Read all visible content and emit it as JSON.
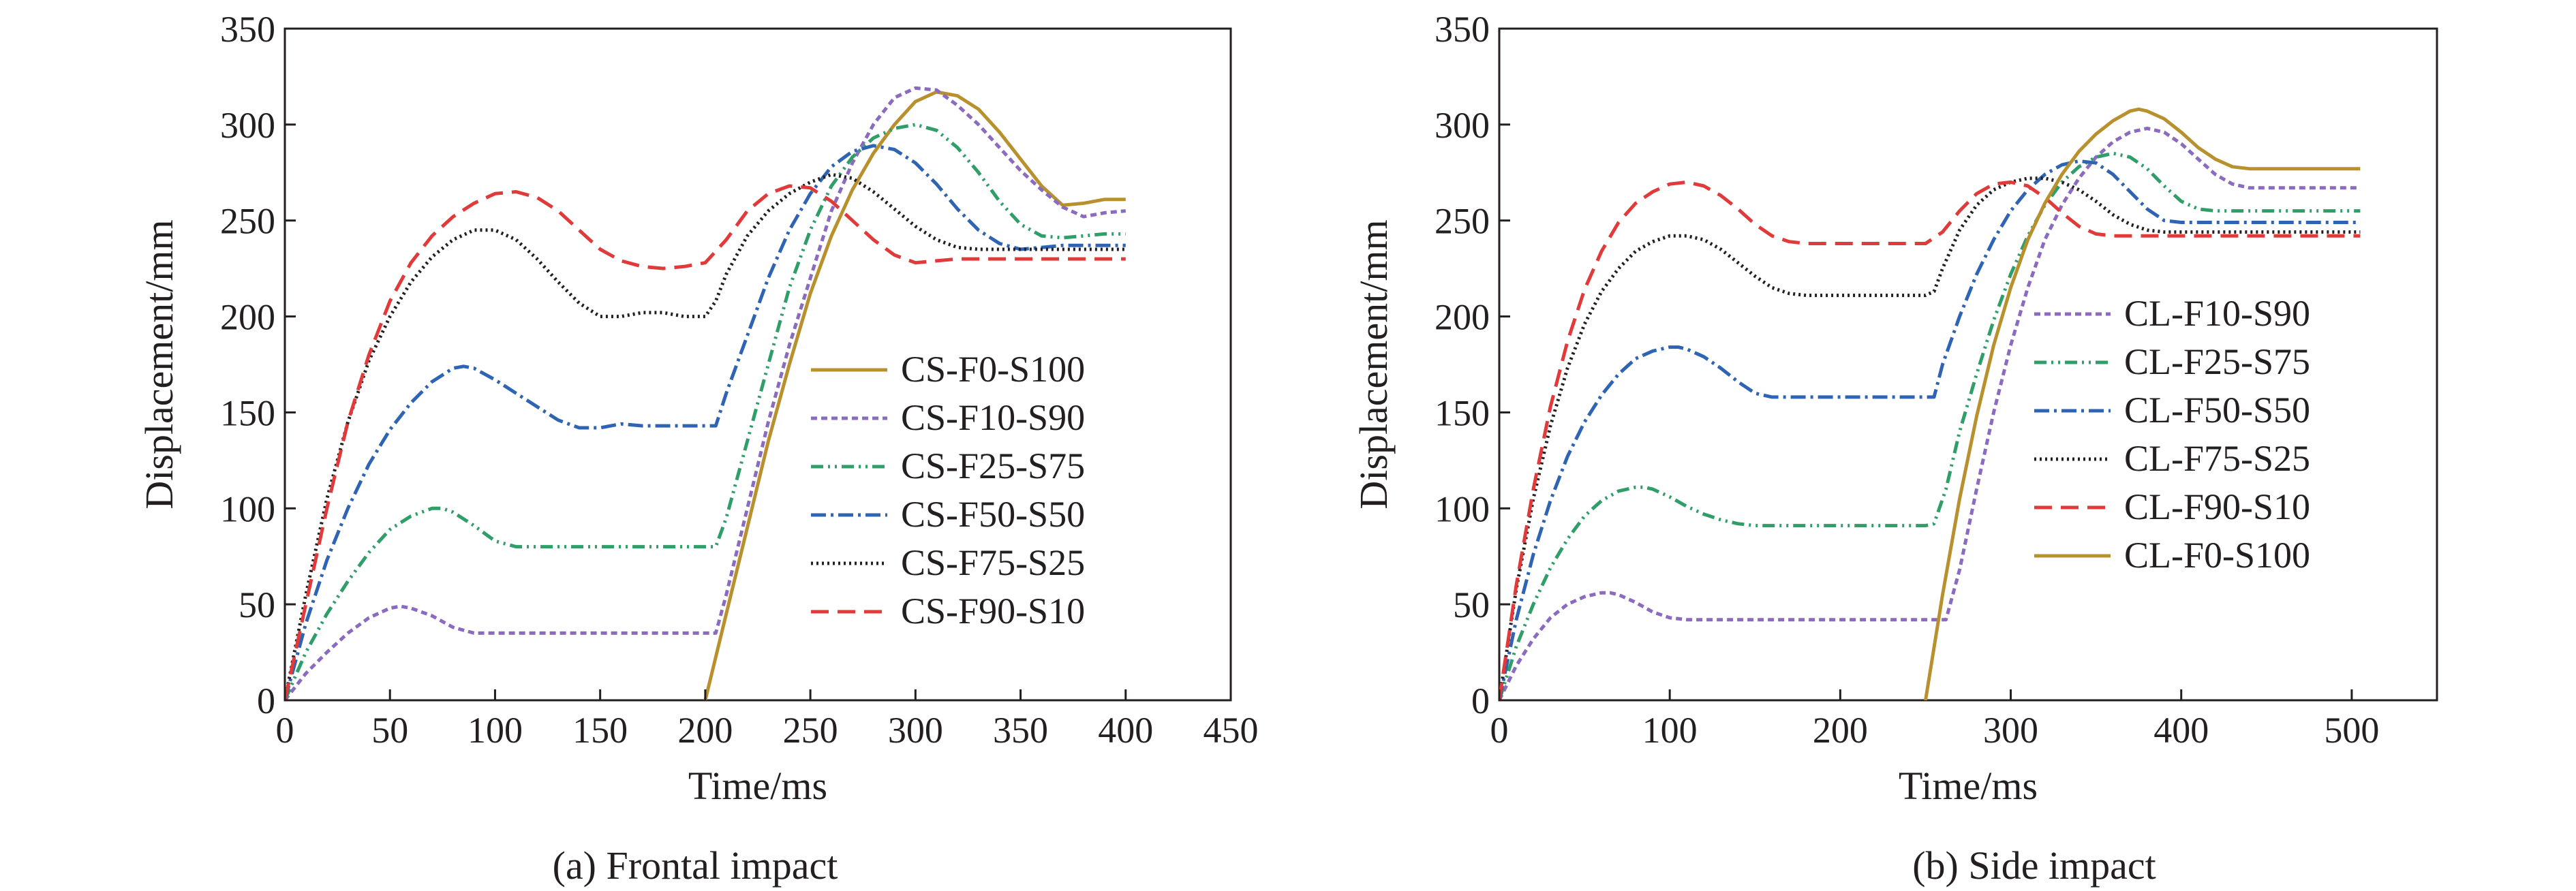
{
  "chart_data": [
    {
      "type": "line",
      "caption": "(a) Frontal impact",
      "xlabel": "Time/ms",
      "ylabel": "Displacement/mm",
      "xlim": [
        0,
        450
      ],
      "ylim": [
        0,
        350
      ],
      "xticks": [
        0,
        50,
        100,
        150,
        200,
        250,
        300,
        350,
        400,
        450
      ],
      "yticks": [
        0,
        50,
        100,
        150,
        200,
        250,
        300,
        350
      ],
      "grid": false,
      "legend_position": "right",
      "series": [
        {
          "name": "CS-F0-S100",
          "color": "#b8912e",
          "dash": "solid",
          "x": [
            200,
            210,
            220,
            230,
            240,
            250,
            260,
            270,
            280,
            290,
            300,
            310,
            320,
            330,
            340,
            350,
            360,
            370,
            380,
            390,
            400
          ],
          "y": [
            0,
            45,
            90,
            135,
            175,
            212,
            242,
            266,
            285,
            300,
            312,
            317,
            315,
            308,
            296,
            282,
            268,
            258,
            259,
            261,
            261
          ]
        },
        {
          "name": "CS-F10-S90",
          "color": "#8a6bbf",
          "dash": "9,6",
          "x": [
            0,
            10,
            20,
            30,
            40,
            50,
            55,
            60,
            70,
            80,
            90,
            100,
            150,
            200,
            205,
            210,
            220,
            230,
            240,
            250,
            260,
            270,
            280,
            290,
            300,
            310,
            320,
            330,
            340,
            350,
            360,
            370,
            380,
            390,
            400
          ],
          "y": [
            0,
            14,
            25,
            35,
            43,
            48,
            49,
            48,
            44,
            38,
            35,
            35,
            35,
            35,
            35,
            55,
            100,
            145,
            185,
            220,
            255,
            280,
            300,
            314,
            319,
            318,
            310,
            300,
            288,
            276,
            266,
            257,
            252,
            254,
            255
          ]
        },
        {
          "name": "CS-F25-S75",
          "color": "#2f9e68",
          "dash": "18,7,3,7,3,7",
          "x": [
            0,
            10,
            20,
            30,
            40,
            50,
            60,
            70,
            75,
            80,
            90,
            100,
            110,
            150,
            200,
            205,
            210,
            220,
            230,
            240,
            250,
            260,
            270,
            280,
            290,
            300,
            310,
            320,
            330,
            340,
            350,
            360,
            370,
            380,
            390,
            400
          ],
          "y": [
            0,
            25,
            45,
            62,
            77,
            89,
            96,
            100,
            100,
            98,
            91,
            83,
            80,
            80,
            80,
            80,
            95,
            135,
            175,
            215,
            245,
            268,
            283,
            293,
            298,
            300,
            297,
            288,
            275,
            260,
            248,
            242,
            241,
            242,
            243,
            243
          ]
        },
        {
          "name": "CS-F50-S50",
          "color": "#2f64b4",
          "dash": "22,7,4,7",
          "x": [
            0,
            10,
            20,
            30,
            40,
            50,
            60,
            70,
            80,
            85,
            90,
            100,
            110,
            120,
            130,
            140,
            150,
            160,
            170,
            180,
            200,
            205,
            210,
            220,
            230,
            240,
            250,
            260,
            270,
            280,
            290,
            300,
            310,
            320,
            330,
            340,
            350,
            360,
            370,
            380,
            400
          ],
          "y": [
            0,
            40,
            73,
            100,
            123,
            141,
            155,
            166,
            173,
            174,
            173,
            167,
            160,
            153,
            146,
            142,
            142,
            144,
            143,
            143,
            143,
            143,
            160,
            190,
            220,
            245,
            264,
            278,
            286,
            289,
            287,
            280,
            269,
            256,
            245,
            238,
            235,
            236,
            237,
            237,
            237
          ]
        },
        {
          "name": "CS-F75-S25",
          "color": "#231f20",
          "dash": "3,5",
          "x": [
            0,
            10,
            20,
            30,
            40,
            50,
            60,
            70,
            80,
            90,
            100,
            110,
            120,
            130,
            140,
            150,
            160,
            170,
            180,
            190,
            200,
            205,
            210,
            220,
            230,
            240,
            250,
            260,
            270,
            280,
            290,
            300,
            310,
            320,
            330,
            340,
            350,
            360,
            380,
            400
          ],
          "y": [
            0,
            55,
            105,
            145,
            177,
            200,
            218,
            231,
            240,
            245,
            245,
            240,
            230,
            218,
            207,
            200,
            200,
            202,
            202,
            200,
            200,
            208,
            222,
            242,
            255,
            264,
            270,
            274,
            272,
            265,
            256,
            247,
            240,
            236,
            235,
            235,
            235,
            235,
            235,
            235
          ]
        },
        {
          "name": "CS-F90-S10",
          "color": "#e03a3a",
          "dash": "26,13",
          "x": [
            0,
            10,
            20,
            30,
            40,
            50,
            60,
            70,
            80,
            90,
            100,
            110,
            120,
            130,
            140,
            150,
            160,
            170,
            180,
            190,
            200,
            210,
            220,
            230,
            240,
            250,
            260,
            270,
            280,
            290,
            300,
            310,
            320,
            340,
            360,
            400
          ],
          "y": [
            0,
            50,
            100,
            145,
            180,
            208,
            228,
            242,
            252,
            259,
            264,
            265,
            262,
            255,
            245,
            235,
            229,
            226,
            225,
            226,
            228,
            240,
            255,
            264,
            268,
            267,
            260,
            250,
            240,
            232,
            228,
            229,
            230,
            230,
            230,
            230
          ]
        }
      ]
    },
    {
      "type": "line",
      "caption": "(b) Side impact",
      "xlabel": "Time/ms",
      "ylabel": "Displacement/mm",
      "xlim": [
        0,
        550
      ],
      "ylim": [
        0,
        350
      ],
      "xticks": [
        0,
        100,
        200,
        300,
        400,
        500
      ],
      "yticks": [
        0,
        50,
        100,
        150,
        200,
        250,
        300,
        350
      ],
      "grid": false,
      "legend_position": "right",
      "series": [
        {
          "name": "CL-F10-S90",
          "color": "#8a6bbf",
          "dash": "9,6",
          "x": [
            0,
            10,
            20,
            30,
            40,
            50,
            60,
            65,
            70,
            80,
            90,
            100,
            110,
            200,
            258,
            262,
            270,
            280,
            290,
            300,
            310,
            320,
            330,
            340,
            350,
            360,
            370,
            380,
            390,
            400,
            410,
            420,
            430,
            440,
            460,
            505
          ],
          "y": [
            0,
            18,
            32,
            43,
            50,
            54,
            56,
            56,
            55,
            51,
            46,
            43,
            42,
            42,
            42,
            42,
            68,
            110,
            150,
            185,
            215,
            240,
            258,
            272,
            283,
            291,
            296,
            298,
            296,
            290,
            282,
            274,
            269,
            267,
            267,
            267
          ]
        },
        {
          "name": "CL-F25-S75",
          "color": "#2f9e68",
          "dash": "18,7,3,7,3,7",
          "x": [
            0,
            10,
            20,
            30,
            40,
            50,
            60,
            70,
            80,
            85,
            90,
            100,
            110,
            120,
            130,
            140,
            150,
            160,
            170,
            180,
            200,
            250,
            255,
            262,
            270,
            280,
            290,
            300,
            310,
            320,
            330,
            340,
            350,
            360,
            370,
            380,
            390,
            400,
            410,
            420,
            440,
            505
          ],
          "y": [
            0,
            28,
            50,
            69,
            84,
            96,
            104,
            109,
            111,
            111,
            110,
            106,
            101,
            97,
            94,
            92,
            91,
            91,
            91,
            91,
            91,
            91,
            92,
            110,
            140,
            170,
            198,
            222,
            242,
            258,
            270,
            278,
            283,
            285,
            283,
            277,
            268,
            260,
            256,
            255,
            255,
            255
          ]
        },
        {
          "name": "CL-F50-S50",
          "color": "#2f64b4",
          "dash": "22,7,4,7",
          "x": [
            0,
            10,
            20,
            30,
            40,
            50,
            60,
            70,
            80,
            90,
            100,
            105,
            110,
            120,
            130,
            140,
            150,
            160,
            170,
            200,
            250,
            255,
            260,
            270,
            280,
            290,
            300,
            310,
            320,
            330,
            340,
            350,
            360,
            370,
            380,
            390,
            400,
            420,
            505
          ],
          "y": [
            0,
            42,
            76,
            104,
            127,
            145,
            159,
            170,
            178,
            182,
            184,
            184,
            183,
            179,
            173,
            166,
            160,
            158,
            158,
            158,
            158,
            158,
            175,
            200,
            222,
            240,
            255,
            266,
            274,
            279,
            281,
            280,
            274,
            265,
            256,
            250,
            249,
            249,
            249
          ]
        },
        {
          "name": "CL-F75-S25",
          "color": "#231f20",
          "dash": "3,5",
          "x": [
            0,
            10,
            20,
            30,
            40,
            50,
            60,
            70,
            80,
            90,
            100,
            110,
            120,
            130,
            140,
            150,
            160,
            170,
            180,
            190,
            200,
            250,
            255,
            260,
            270,
            280,
            290,
            300,
            310,
            320,
            330,
            340,
            350,
            360,
            370,
            380,
            390,
            400,
            420,
            505
          ],
          "y": [
            0,
            58,
            105,
            143,
            173,
            196,
            213,
            225,
            234,
            239,
            242,
            242,
            240,
            235,
            228,
            221,
            215,
            212,
            211,
            211,
            211,
            211,
            213,
            225,
            245,
            258,
            266,
            270,
            272,
            272,
            270,
            266,
            260,
            253,
            248,
            245,
            244,
            244,
            244,
            244
          ]
        },
        {
          "name": "CL-F90-S10",
          "color": "#e03a3a",
          "dash": "26,13",
          "x": [
            0,
            10,
            20,
            30,
            40,
            50,
            60,
            70,
            80,
            90,
            100,
            110,
            120,
            130,
            140,
            150,
            160,
            170,
            180,
            190,
            200,
            250,
            260,
            270,
            280,
            290,
            300,
            310,
            320,
            330,
            340,
            350,
            360,
            380,
            400,
            505
          ],
          "y": [
            0,
            60,
            110,
            153,
            187,
            214,
            234,
            249,
            259,
            265,
            269,
            270,
            268,
            263,
            256,
            248,
            242,
            239,
            238,
            238,
            238,
            238,
            244,
            255,
            264,
            269,
            270,
            268,
            262,
            254,
            247,
            243,
            242,
            242,
            242,
            242
          ]
        },
        {
          "name": "CL-F0-S100",
          "color": "#b8912e",
          "dash": "solid",
          "x": [
            250,
            260,
            270,
            280,
            290,
            300,
            310,
            320,
            330,
            340,
            350,
            360,
            370,
            375,
            380,
            390,
            400,
            410,
            420,
            430,
            440,
            460,
            505
          ],
          "y": [
            0,
            55,
            105,
            148,
            185,
            215,
            240,
            259,
            274,
            286,
            295,
            302,
            307,
            308,
            307,
            303,
            296,
            288,
            282,
            278,
            277,
            277,
            277
          ]
        }
      ]
    }
  ]
}
